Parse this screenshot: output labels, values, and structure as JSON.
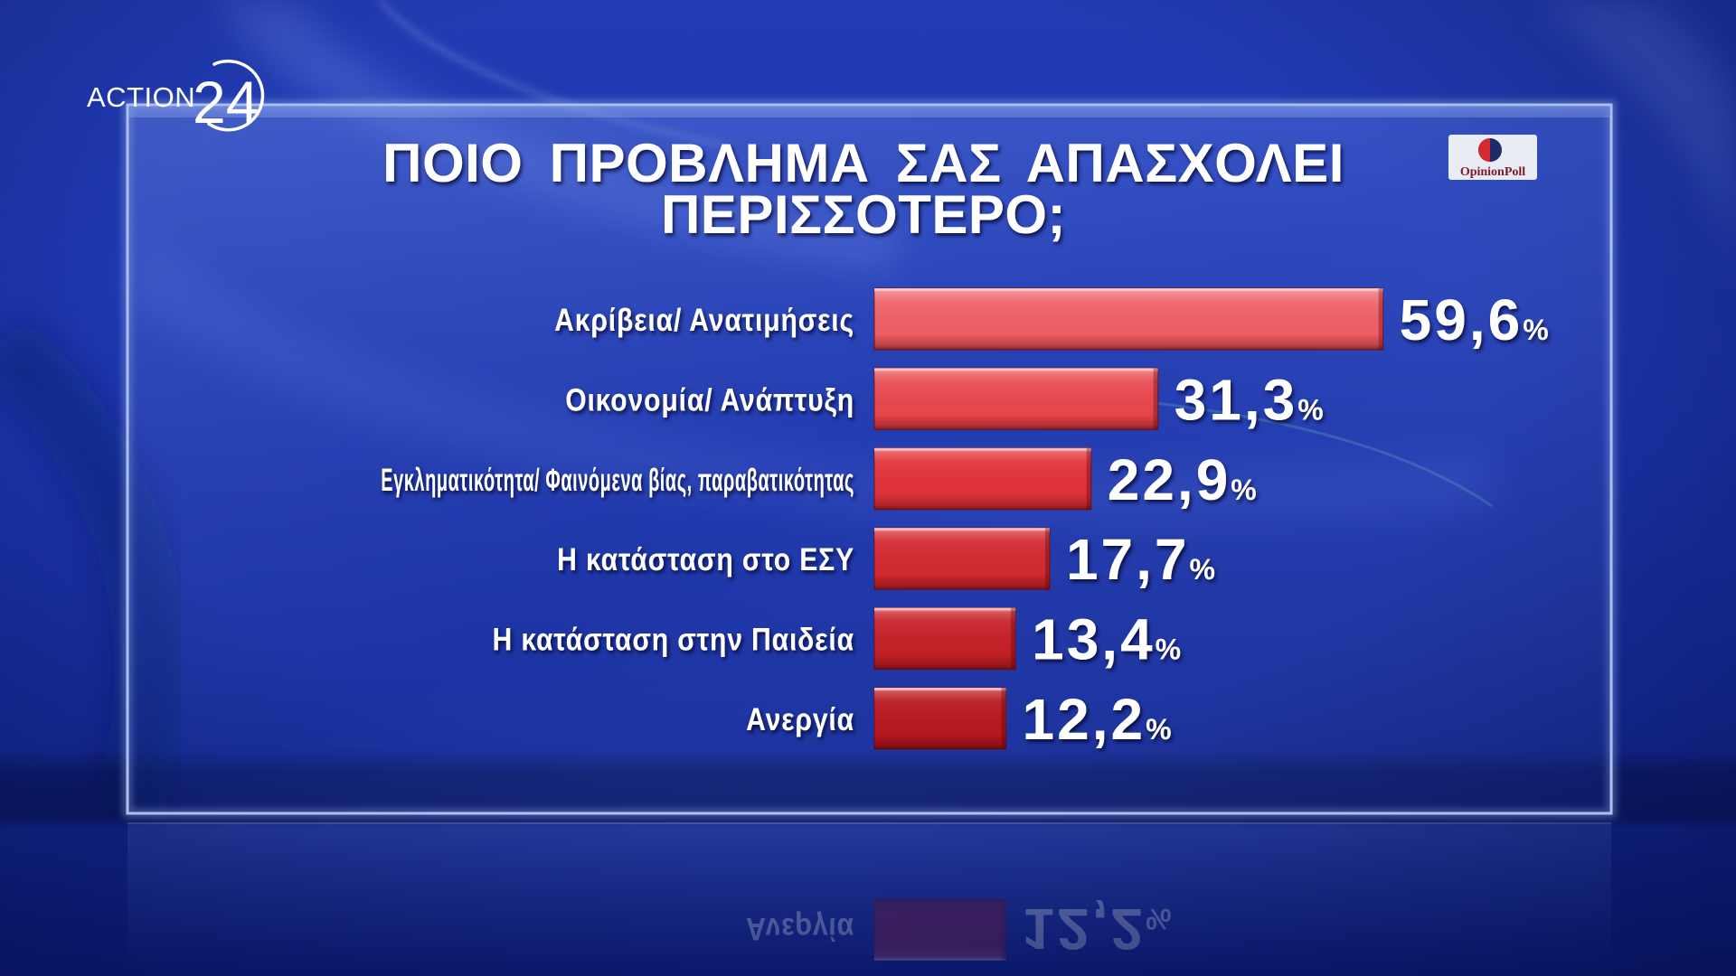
{
  "logo": {
    "brand": "ACTION",
    "number": "24"
  },
  "poll_logo": {
    "text": "OpinionPoll"
  },
  "colors": {
    "background": "#1b33a8",
    "panel_border": "#a9c0f2",
    "bar_light": "#f26a6f",
    "bar": "#e0343a",
    "bar_dark": "#b3161d",
    "text": "#ffffff"
  },
  "chart_data": {
    "type": "bar",
    "orientation": "horizontal",
    "title": [
      "ΠΟΙΟ ΠΡΟΒΛΗΜΑ ΣΑΣ ΑΠΑΣΧΟΛΕΙ",
      "ΠΕΡΙΣΣΟΤΕΡΟ;"
    ],
    "categories": [
      "Ακρίβεια/ Ανατιμήσεις",
      "Οικονομία/ Ανάπτυξη",
      "Εγκληματικότητα/ Φαινόμενα βίας, παραβατικότητας",
      "Η κατάσταση στο ΕΣΥ",
      "Η κατάσταση στην Παιδεία",
      "Ανεργία"
    ],
    "values": [
      59.6,
      31.3,
      22.9,
      17.7,
      13.4,
      12.2
    ],
    "value_labels": [
      "59,6",
      "31,3",
      "22,9",
      "17,7",
      "13,4",
      "12,2"
    ],
    "unit": "%",
    "xlabel": "",
    "ylabel": "",
    "grid": false,
    "legend": "none"
  }
}
